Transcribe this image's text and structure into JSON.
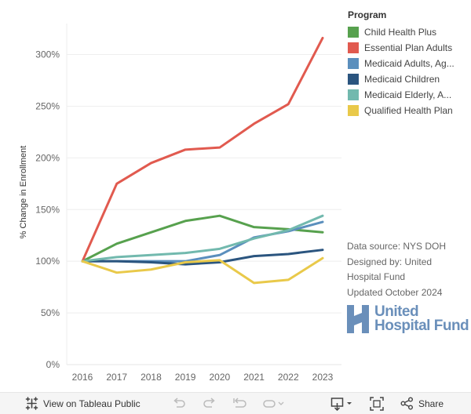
{
  "chart_data": {
    "type": "line",
    "x": [
      "2016",
      "2017",
      "2018",
      "2019",
      "2020",
      "2021",
      "2022",
      "2023"
    ],
    "ylabel": "% Change in Enrollment",
    "ylim": [
      0,
      330
    ],
    "yticks": [
      0,
      50,
      100,
      150,
      200,
      250,
      300
    ],
    "ytick_labels": [
      "0%",
      "50%",
      "100%",
      "150%",
      "200%",
      "250%",
      "300%"
    ],
    "grid": "horizontal",
    "legend_placement": "right",
    "series": [
      {
        "name": "Child Health Plus",
        "color": "#57a14e",
        "values": [
          100,
          117,
          128,
          139,
          144,
          133,
          131,
          128
        ]
      },
      {
        "name": "Essential Plan Adults",
        "color": "#e15a4f",
        "values": [
          100,
          175,
          195,
          208,
          210,
          233,
          252,
          316
        ]
      },
      {
        "name": "Medicaid Adults, Ag...",
        "color": "#5b8fbd",
        "values": [
          100,
          100,
          100,
          100,
          106,
          123,
          129,
          138
        ]
      },
      {
        "name": "Medicaid Children",
        "color": "#2b557f",
        "values": [
          100,
          100,
          99,
          97,
          99,
          105,
          107,
          111
        ]
      },
      {
        "name": "Medicaid Elderly, A...",
        "color": "#72b9ae",
        "values": [
          100,
          104,
          106,
          108,
          112,
          122,
          130,
          144
        ]
      },
      {
        "name": "Qualified Health Plan",
        "color": "#e9c94a",
        "values": [
          100,
          89,
          92,
          99,
          101,
          79,
          82,
          103
        ]
      }
    ]
  },
  "legend": {
    "title": "Program"
  },
  "notes": {
    "line1": "Data source: NYS DOH",
    "line2": "Designed by: United",
    "line3": "Hospital Fund",
    "line4": "Updated October 2024"
  },
  "logo": {
    "line1": "United",
    "line2": "Hospital Fund"
  },
  "toolbar": {
    "view_label": "View on Tableau Public",
    "share_label": "Share",
    "icons": [
      "tableau-icon",
      "undo-icon",
      "redo-icon",
      "revert-icon",
      "pause-icon",
      "download-icon",
      "fullscreen-icon",
      "share-icon"
    ]
  }
}
